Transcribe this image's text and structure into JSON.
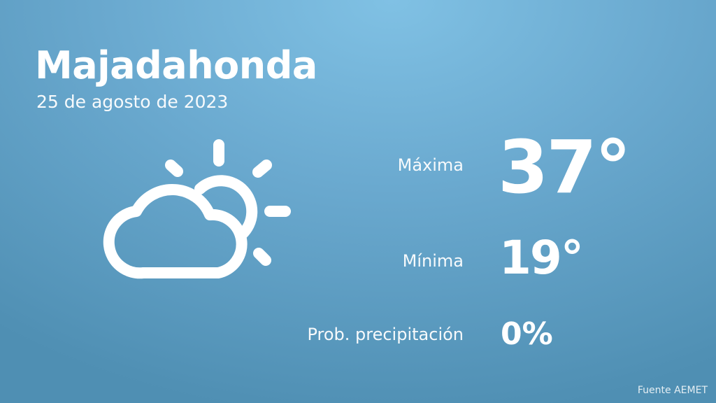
{
  "location": "Majadahonda",
  "date": "25 de agosto de 2023",
  "weather_icon": "partly-cloudy-icon",
  "forecast": {
    "max_label": "Máxima",
    "max_value": "37°",
    "min_label": "Mínima",
    "min_value": "19°",
    "precip_label": "Prob. precipitación",
    "precip_value": "0%"
  },
  "source": "Fuente AEMET",
  "colors": {
    "background_top": "#80c1e4",
    "background_bottom": "#4f8fb3",
    "text": "#ffffff"
  }
}
